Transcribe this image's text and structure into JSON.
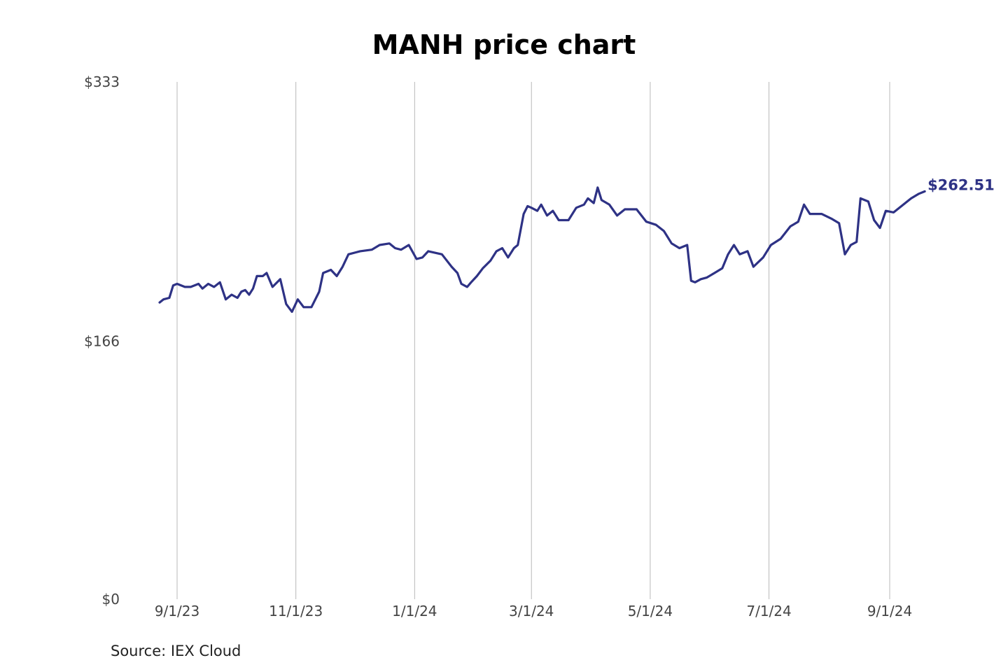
{
  "colors": {
    "line": "#2e3285",
    "grid": "#b8b8b8"
  },
  "footer": {
    "source": "Source: IEX Cloud"
  },
  "chart_data": {
    "type": "line",
    "title": "MANH price chart",
    "xlabel": "",
    "ylabel": "",
    "ylim": [
      0,
      333
    ],
    "y_ticks": [
      {
        "value": 0,
        "label": "$0"
      },
      {
        "value": 166,
        "label": "$166"
      },
      {
        "value": 333,
        "label": "$333"
      }
    ],
    "x_ticks": [
      "2023-09-01",
      "2023-11-01",
      "2024-01-01",
      "2024-03-01",
      "2024-05-01",
      "2024-07-01",
      "2024-09-01"
    ],
    "x_tick_labels": [
      "9/1/23",
      "11/1/23",
      "1/1/24",
      "3/1/24",
      "5/1/24",
      "7/1/24",
      "9/1/24"
    ],
    "grid": {
      "vertical": true,
      "horizontal": false
    },
    "last_value_label": "$262.51",
    "series": [
      {
        "points": [
          [
            "2023-08-23",
            191
          ],
          [
            "2023-08-25",
            193
          ],
          [
            "2023-08-28",
            194
          ],
          [
            "2023-08-30",
            202
          ],
          [
            "2023-09-01",
            203
          ],
          [
            "2023-09-05",
            201
          ],
          [
            "2023-09-08",
            201
          ],
          [
            "2023-09-12",
            203
          ],
          [
            "2023-09-14",
            200
          ],
          [
            "2023-09-17",
            203
          ],
          [
            "2023-09-20",
            201
          ],
          [
            "2023-09-23",
            204
          ],
          [
            "2023-09-26",
            193
          ],
          [
            "2023-09-29",
            196
          ],
          [
            "2023-10-02",
            194
          ],
          [
            "2023-10-04",
            198
          ],
          [
            "2023-10-06",
            199
          ],
          [
            "2023-10-08",
            196
          ],
          [
            "2023-10-10",
            200
          ],
          [
            "2023-10-12",
            208
          ],
          [
            "2023-10-15",
            208
          ],
          [
            "2023-10-17",
            210
          ],
          [
            "2023-10-20",
            201
          ],
          [
            "2023-10-24",
            206
          ],
          [
            "2023-10-27",
            190
          ],
          [
            "2023-10-30",
            185
          ],
          [
            "2023-11-02",
            193
          ],
          [
            "2023-11-05",
            188
          ],
          [
            "2023-11-09",
            188
          ],
          [
            "2023-11-13",
            198
          ],
          [
            "2023-11-15",
            210
          ],
          [
            "2023-11-19",
            212
          ],
          [
            "2023-11-22",
            208
          ],
          [
            "2023-11-25",
            214
          ],
          [
            "2023-11-28",
            222
          ],
          [
            "2023-12-04",
            224
          ],
          [
            "2023-12-10",
            225
          ],
          [
            "2023-12-14",
            228
          ],
          [
            "2023-12-19",
            229
          ],
          [
            "2023-12-22",
            226
          ],
          [
            "2023-12-25",
            225
          ],
          [
            "2023-12-29",
            228
          ],
          [
            "2024-01-02",
            219
          ],
          [
            "2024-01-05",
            220
          ],
          [
            "2024-01-08",
            224
          ],
          [
            "2024-01-15",
            222
          ],
          [
            "2024-01-20",
            214
          ],
          [
            "2024-01-23",
            210
          ],
          [
            "2024-01-25",
            203
          ],
          [
            "2024-01-28",
            201
          ],
          [
            "2024-01-30",
            204
          ],
          [
            "2024-02-02",
            208
          ],
          [
            "2024-02-05",
            213
          ],
          [
            "2024-02-09",
            218
          ],
          [
            "2024-02-12",
            224
          ],
          [
            "2024-02-15",
            226
          ],
          [
            "2024-02-18",
            220
          ],
          [
            "2024-02-21",
            226
          ],
          [
            "2024-02-23",
            228
          ],
          [
            "2024-02-26",
            248
          ],
          [
            "2024-02-28",
            253
          ],
          [
            "2024-03-01",
            252
          ],
          [
            "2024-03-04",
            250
          ],
          [
            "2024-03-06",
            254
          ],
          [
            "2024-03-09",
            247
          ],
          [
            "2024-03-12",
            250
          ],
          [
            "2024-03-15",
            244
          ],
          [
            "2024-03-20",
            244
          ],
          [
            "2024-03-24",
            252
          ],
          [
            "2024-03-28",
            254
          ],
          [
            "2024-03-30",
            258
          ],
          [
            "2024-04-02",
            255
          ],
          [
            "2024-04-04",
            265
          ],
          [
            "2024-04-06",
            257
          ],
          [
            "2024-04-10",
            254
          ],
          [
            "2024-04-14",
            247
          ],
          [
            "2024-04-18",
            251
          ],
          [
            "2024-04-24",
            251
          ],
          [
            "2024-04-29",
            243
          ],
          [
            "2024-05-04",
            241
          ],
          [
            "2024-05-08",
            237
          ],
          [
            "2024-05-12",
            229
          ],
          [
            "2024-05-16",
            226
          ],
          [
            "2024-05-20",
            228
          ],
          [
            "2024-05-22",
            205
          ],
          [
            "2024-05-24",
            204
          ],
          [
            "2024-05-27",
            206
          ],
          [
            "2024-05-30",
            207
          ],
          [
            "2024-06-03",
            210
          ],
          [
            "2024-06-07",
            213
          ],
          [
            "2024-06-10",
            222
          ],
          [
            "2024-06-13",
            228
          ],
          [
            "2024-06-16",
            222
          ],
          [
            "2024-06-20",
            224
          ],
          [
            "2024-06-23",
            214
          ],
          [
            "2024-06-28",
            220
          ],
          [
            "2024-07-02",
            228
          ],
          [
            "2024-07-07",
            232
          ],
          [
            "2024-07-12",
            240
          ],
          [
            "2024-07-16",
            243
          ],
          [
            "2024-07-19",
            254
          ],
          [
            "2024-07-22",
            248
          ],
          [
            "2024-07-28",
            248
          ],
          [
            "2024-08-02",
            245
          ],
          [
            "2024-08-06",
            242
          ],
          [
            "2024-08-09",
            222
          ],
          [
            "2024-08-12",
            228
          ],
          [
            "2024-08-15",
            230
          ],
          [
            "2024-08-17",
            258
          ],
          [
            "2024-08-21",
            256
          ],
          [
            "2024-08-24",
            244
          ],
          [
            "2024-08-27",
            239
          ],
          [
            "2024-08-30",
            250
          ],
          [
            "2024-09-03",
            249
          ],
          [
            "2024-09-07",
            253
          ],
          [
            "2024-09-12",
            258
          ],
          [
            "2024-09-16",
            261
          ],
          [
            "2024-09-19",
            262.51
          ]
        ]
      }
    ]
  }
}
